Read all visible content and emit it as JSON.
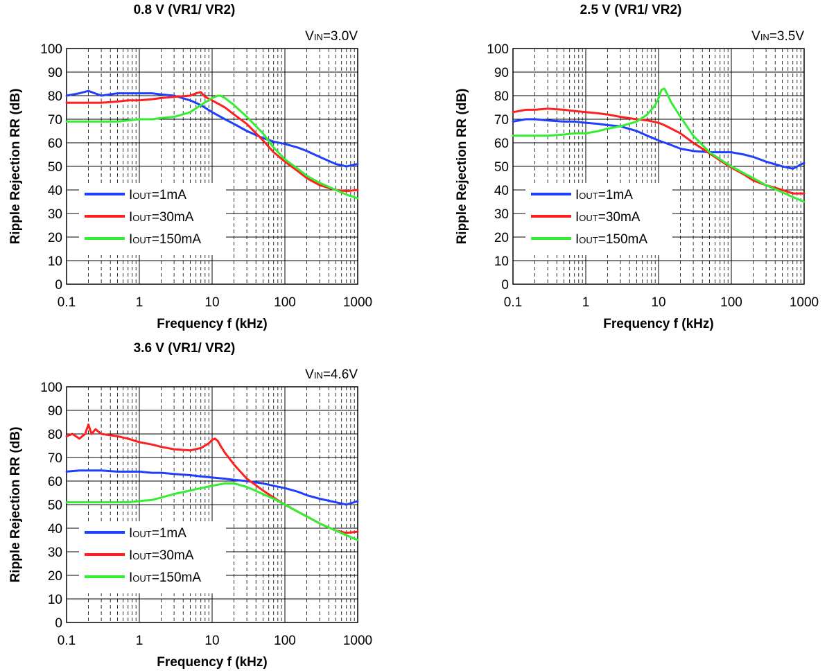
{
  "colors": {
    "blue": "#1f3fff",
    "red": "#ff1f1f",
    "green": "#33ee33",
    "grid": "#000000"
  },
  "chart_data": [
    {
      "type": "line",
      "title": "0.8 V (VR1/ VR2)",
      "condition": {
        "prefix": "V",
        "sub": "IN",
        "suffix": "=3.0V"
      },
      "xlabel": "Frequency f (kHz)",
      "ylabel": "Ripple Rejection RR (dB)",
      "xscale": "log",
      "xlim": [
        0.1,
        1000
      ],
      "ylim": [
        0,
        100
      ],
      "xticks": [
        "0.1",
        "1",
        "10",
        "100",
        "1000"
      ],
      "yticks": [
        "0",
        "10",
        "20",
        "30",
        "40",
        "50",
        "60",
        "70",
        "80",
        "90",
        "100"
      ],
      "grid": true,
      "legend_position": "lower-left",
      "series": [
        {
          "prefix": "I",
          "sub": "OUT",
          "suffix": "=1mA",
          "color": "blue",
          "x": [
            0.1,
            0.15,
            0.2,
            0.3,
            0.5,
            0.7,
            1,
            1.5,
            2,
            3,
            5,
            7,
            10,
            15,
            20,
            30,
            50,
            70,
            100,
            150,
            200,
            300,
            500,
            700,
            1000
          ],
          "y": [
            80,
            81,
            82,
            80,
            81,
            81,
            81,
            81,
            80.5,
            80,
            78,
            76,
            73,
            70,
            68,
            65,
            62,
            60.5,
            59.5,
            58,
            56.5,
            54,
            51,
            50,
            51
          ]
        },
        {
          "prefix": "I",
          "sub": "OUT",
          "suffix": "=30mA",
          "color": "red",
          "x": [
            0.1,
            0.15,
            0.2,
            0.3,
            0.5,
            0.7,
            1,
            1.5,
            2,
            3,
            5,
            6,
            7,
            8,
            10,
            15,
            20,
            30,
            50,
            70,
            100,
            150,
            200,
            300,
            500,
            700,
            1000
          ],
          "y": [
            77,
            77,
            77,
            77,
            77.5,
            78,
            78,
            78.5,
            79,
            79.5,
            80,
            81,
            81.5,
            79.5,
            78,
            75,
            72,
            68,
            61,
            56,
            52,
            48,
            45,
            42,
            40,
            39.5,
            40
          ]
        },
        {
          "prefix": "I",
          "sub": "OUT",
          "suffix": "=150mA",
          "color": "green",
          "x": [
            0.1,
            0.15,
            0.2,
            0.3,
            0.5,
            0.7,
            1,
            1.5,
            2,
            3,
            5,
            7,
            10,
            12,
            13,
            15,
            20,
            30,
            50,
            70,
            100,
            150,
            200,
            300,
            500,
            700,
            1000
          ],
          "y": [
            69,
            69,
            69,
            69,
            69,
            69.5,
            70,
            70,
            70.5,
            71,
            73,
            76,
            79,
            80,
            80,
            79,
            76,
            71,
            64,
            58,
            53,
            49,
            46,
            43,
            40,
            38,
            36.5
          ]
        }
      ]
    },
    {
      "type": "line",
      "title": "2.5 V (VR1/ VR2)",
      "condition": {
        "prefix": "V",
        "sub": "IN",
        "suffix": "=3.5V"
      },
      "xlabel": "Frequency f (kHz)",
      "ylabel": "Ripple Rejection RR (dB)",
      "xscale": "log",
      "xlim": [
        0.1,
        1000
      ],
      "ylim": [
        0,
        100
      ],
      "xticks": [
        "0.1",
        "1",
        "10",
        "100",
        "1000"
      ],
      "yticks": [
        "0",
        "10",
        "20",
        "30",
        "40",
        "50",
        "60",
        "70",
        "80",
        "90",
        "100"
      ],
      "grid": true,
      "legend_position": "lower-left",
      "series": [
        {
          "prefix": "I",
          "sub": "OUT",
          "suffix": "=1mA",
          "color": "blue",
          "x": [
            0.1,
            0.15,
            0.2,
            0.3,
            0.5,
            0.7,
            1,
            1.5,
            2,
            3,
            5,
            7,
            10,
            15,
            20,
            30,
            50,
            70,
            100,
            150,
            200,
            300,
            500,
            700,
            1000
          ],
          "y": [
            69,
            70,
            70,
            69.5,
            69,
            69,
            68.5,
            68,
            67.5,
            67,
            65,
            63,
            61,
            59,
            57.5,
            56.5,
            56,
            56,
            56,
            55,
            54,
            52,
            50,
            49,
            51.5
          ]
        },
        {
          "prefix": "I",
          "sub": "OUT",
          "suffix": "=30mA",
          "color": "red",
          "x": [
            0.1,
            0.15,
            0.2,
            0.3,
            0.5,
            0.7,
            1,
            1.5,
            2,
            3,
            5,
            7,
            10,
            12,
            15,
            20,
            30,
            50,
            70,
            100,
            150,
            200,
            300,
            500,
            700,
            1000
          ],
          "y": [
            73,
            74,
            74,
            74.5,
            74,
            73.5,
            73,
            72.5,
            72,
            71,
            70,
            69.5,
            68.5,
            67.5,
            66,
            64,
            60,
            55.5,
            52.5,
            49.5,
            46.5,
            44,
            42,
            40,
            38.5,
            38.5
          ]
        },
        {
          "prefix": "I",
          "sub": "OUT",
          "suffix": "=150mA",
          "color": "green",
          "x": [
            0.1,
            0.15,
            0.2,
            0.3,
            0.5,
            0.7,
            1,
            1.5,
            2,
            3,
            5,
            7,
            9,
            10,
            11,
            12,
            13,
            15,
            20,
            30,
            50,
            70,
            100,
            150,
            200,
            300,
            500,
            700,
            1000
          ],
          "y": [
            63,
            63,
            63,
            63,
            63.5,
            64,
            64,
            65,
            66,
            67,
            69,
            72,
            76,
            79,
            82.5,
            83,
            81,
            77,
            71,
            63,
            56,
            53,
            50,
            47,
            45,
            42,
            39,
            37,
            35
          ]
        }
      ]
    },
    {
      "type": "line",
      "title": "3.6 V (VR1/ VR2)",
      "condition": {
        "prefix": "V",
        "sub": "IN",
        "suffix": "=4.6V"
      },
      "xlabel": "Frequency f (kHz)",
      "ylabel": "Ripple Rejection RR (dB)",
      "xscale": "log",
      "xlim": [
        0.1,
        1000
      ],
      "ylim": [
        0,
        100
      ],
      "xticks": [
        "0.1",
        "1",
        "10",
        "100",
        "1000"
      ],
      "yticks": [
        "0",
        "10",
        "20",
        "30",
        "40",
        "50",
        "60",
        "70",
        "80",
        "90",
        "100"
      ],
      "grid": true,
      "legend_position": "lower-left",
      "series": [
        {
          "prefix": "I",
          "sub": "OUT",
          "suffix": "=1mA",
          "color": "blue",
          "x": [
            0.1,
            0.15,
            0.2,
            0.3,
            0.5,
            0.7,
            1,
            1.5,
            2,
            3,
            5,
            7,
            10,
            15,
            20,
            30,
            50,
            70,
            100,
            150,
            200,
            300,
            500,
            700,
            1000
          ],
          "y": [
            64,
            64.5,
            64.5,
            64.5,
            64,
            64,
            64,
            63.5,
            63.5,
            63,
            62.5,
            62,
            61.5,
            61,
            60.5,
            60,
            59,
            58,
            57,
            55.5,
            54,
            52.5,
            51,
            50,
            51.5
          ]
        },
        {
          "prefix": "I",
          "sub": "OUT",
          "suffix": "=30mA",
          "color": "red",
          "x": [
            0.1,
            0.12,
            0.15,
            0.18,
            0.2,
            0.22,
            0.25,
            0.3,
            0.5,
            0.7,
            1,
            1.5,
            2,
            3,
            5,
            7,
            9,
            10,
            11,
            12,
            13,
            15,
            20,
            30,
            50,
            70,
            100,
            150,
            200,
            300,
            500,
            700,
            1000
          ],
          "y": [
            79,
            80,
            78,
            80,
            84,
            80,
            82,
            80,
            79,
            78,
            76.5,
            75.5,
            74.5,
            73.5,
            73,
            74,
            76,
            77.5,
            78,
            77,
            75,
            72,
            67,
            61,
            56,
            53,
            50,
            47,
            45,
            42,
            39,
            38,
            38.5
          ]
        },
        {
          "prefix": "I",
          "sub": "OUT",
          "suffix": "=150mA",
          "color": "green",
          "x": [
            0.1,
            0.15,
            0.2,
            0.3,
            0.5,
            0.7,
            1,
            1.5,
            2,
            3,
            5,
            7,
            10,
            15,
            20,
            30,
            50,
            70,
            100,
            150,
            200,
            300,
            500,
            700,
            1000
          ],
          "y": [
            51,
            51,
            51,
            51,
            51,
            51,
            51.5,
            52,
            53,
            54.5,
            56,
            57,
            58,
            59,
            59,
            57.5,
            54.5,
            52.5,
            50,
            47,
            45,
            42,
            39,
            37,
            35
          ]
        }
      ]
    }
  ]
}
